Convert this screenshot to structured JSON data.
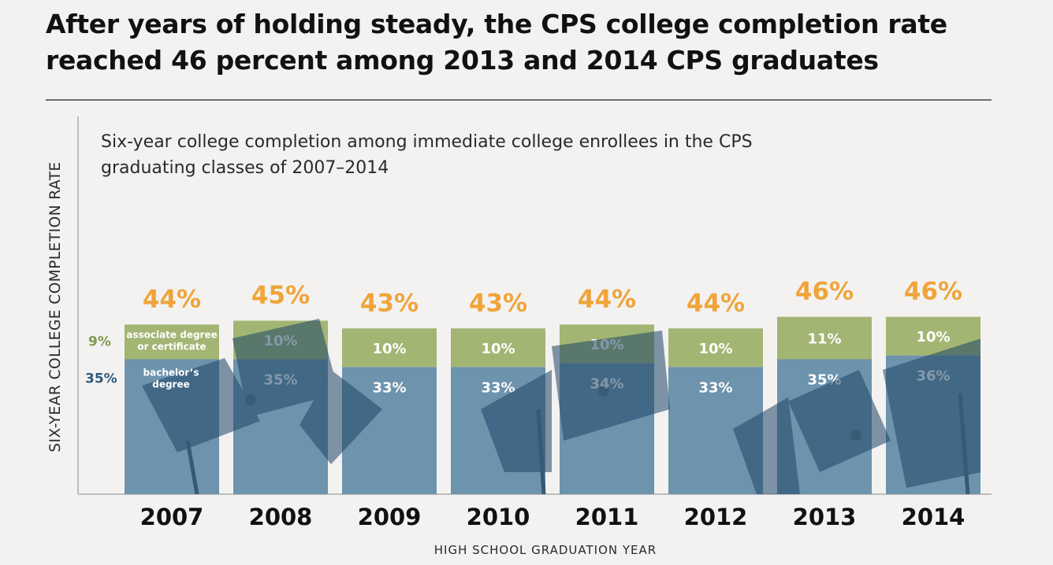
{
  "header": {
    "title": "After years of holding steady, the CPS college completion rate reached 46 percent among 2013 and 2014 CPS graduates"
  },
  "chart_data": {
    "type": "bar",
    "stacked": true,
    "subtitle_lines": [
      "Six-year college completion among immediate college enrollees in the CPS",
      "graduating classes of 2007–2014"
    ],
    "xlabel": "HIGH SCHOOL GRADUATION YEAR",
    "ylabel": "SIX-YEAR COLLEGE COMPLETION RATE",
    "ylim": [
      0,
      50
    ],
    "grid": false,
    "categories": [
      "2007",
      "2008",
      "2009",
      "2010",
      "2011",
      "2012",
      "2013",
      "2014"
    ],
    "series": [
      {
        "name": "bachelor's degree",
        "values": [
          35,
          35,
          33,
          33,
          34,
          33,
          35,
          36
        ],
        "color": "#6d93ad"
      },
      {
        "name": "associate degree or certificate",
        "values": [
          9,
          10,
          10,
          10,
          10,
          10,
          11,
          10
        ],
        "color": "#a3b573"
      }
    ],
    "totals": [
      44,
      45,
      43,
      43,
      44,
      44,
      46,
      46
    ],
    "total_color": "#f0a43a",
    "legend": {
      "placement": "inside-first-bar",
      "associate_lines": [
        "associate degree",
        "or certificate"
      ],
      "bachelor_lines": [
        "bachelor’s",
        "degree"
      ]
    }
  }
}
